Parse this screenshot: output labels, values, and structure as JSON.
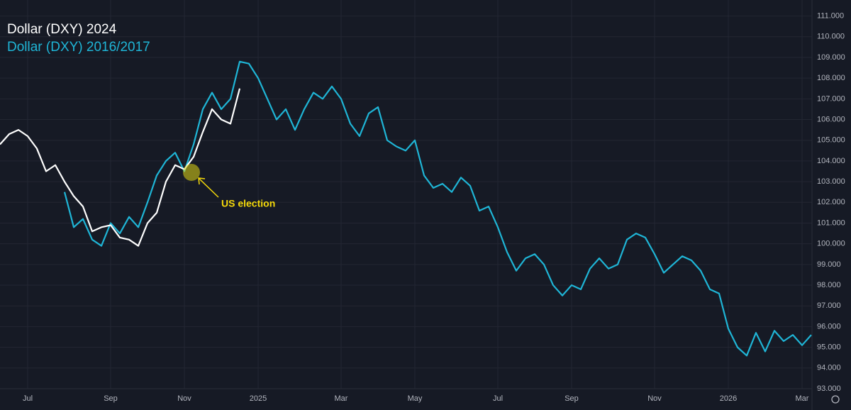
{
  "chart_data": {
    "type": "line",
    "series": [
      {
        "name": "Dollar (DXY) 2024",
        "color": "#ffffff",
        "values": [
          104.8,
          105.3,
          105.5,
          105.2,
          104.6,
          103.5,
          103.8,
          103.0,
          102.3,
          101.8,
          100.6,
          100.8,
          100.9,
          100.3,
          100.2,
          99.9,
          101.0,
          101.5,
          103.0,
          103.8,
          103.6,
          104.2,
          105.4,
          106.5,
          106.0,
          105.8,
          107.5,
          null,
          null,
          null,
          null,
          null,
          null,
          null,
          null,
          null,
          null,
          null,
          null,
          null,
          null,
          null,
          null,
          null,
          null,
          null,
          null,
          null,
          null,
          null,
          null,
          null,
          null,
          null,
          null,
          null,
          null,
          null,
          null,
          null,
          null,
          null,
          null,
          null,
          null,
          null,
          null,
          null,
          null,
          null,
          null,
          null,
          null,
          null,
          null,
          null,
          null,
          null,
          null,
          null,
          null,
          null,
          null,
          null,
          null,
          null,
          null,
          null,
          null
        ]
      },
      {
        "name": "Dollar (DXY) 2016/2017",
        "color": "#1fb5d6",
        "values": [
          null,
          null,
          null,
          null,
          null,
          null,
          null,
          102.5,
          100.8,
          101.2,
          100.2,
          99.9,
          101.0,
          100.5,
          101.3,
          100.8,
          102.0,
          103.3,
          104.0,
          104.4,
          103.5,
          104.8,
          106.5,
          107.3,
          106.5,
          107.0,
          108.8,
          108.7,
          108.0,
          107.0,
          106.0,
          106.5,
          105.5,
          106.5,
          107.3,
          107.0,
          107.6,
          107.0,
          105.8,
          105.2,
          106.3,
          106.6,
          105.0,
          104.7,
          104.5,
          105.0,
          103.3,
          102.7,
          102.9,
          102.5,
          103.2,
          102.8,
          101.6,
          101.8,
          100.8,
          99.6,
          98.7,
          99.3,
          99.5,
          99.0,
          98.0,
          97.5,
          98.0,
          97.8,
          98.8,
          99.3,
          98.8,
          99.0,
          100.2,
          100.5,
          100.3,
          99.5,
          98.6,
          99.0,
          99.4,
          99.2,
          98.7,
          97.8,
          97.6,
          95.9,
          95.0,
          94.6,
          95.7,
          94.8,
          95.8,
          95.3,
          95.6,
          95.1,
          95.6
        ]
      }
    ],
    "categories": [
      null,
      null,
      null,
      "Jul",
      null,
      null,
      null,
      null,
      null,
      null,
      null,
      null,
      "Sep",
      null,
      null,
      null,
      null,
      null,
      null,
      null,
      "Nov",
      null,
      null,
      null,
      null,
      null,
      null,
      null,
      "2025",
      null,
      null,
      null,
      null,
      null,
      null,
      null,
      null,
      "Mar",
      null,
      null,
      null,
      null,
      null,
      null,
      null,
      "May",
      null,
      null,
      null,
      null,
      null,
      null,
      null,
      null,
      "Jul",
      null,
      null,
      null,
      null,
      null,
      null,
      null,
      "Sep",
      null,
      null,
      null,
      null,
      null,
      null,
      null,
      null,
      "Nov",
      null,
      null,
      null,
      null,
      null,
      null,
      null,
      "2026",
      null,
      null,
      null,
      null,
      null,
      null,
      null,
      "Mar",
      null
    ],
    "ylim": [
      93,
      111.5
    ],
    "yticks": [
      {
        "value": 93,
        "label": "93.000"
      },
      {
        "value": 94,
        "label": "94.000"
      },
      {
        "value": 95,
        "label": "95.000"
      },
      {
        "value": 96,
        "label": "96.000"
      },
      {
        "value": 97,
        "label": "97.000"
      },
      {
        "value": 98,
        "label": "98.000"
      },
      {
        "value": 99,
        "label": "99.000"
      },
      {
        "value": 100,
        "label": "100.000"
      },
      {
        "value": 101,
        "label": "101.000"
      },
      {
        "value": 102,
        "label": "102.000"
      },
      {
        "value": 103,
        "label": "103.000"
      },
      {
        "value": 104,
        "label": "104.000"
      },
      {
        "value": 105,
        "label": "105.000"
      },
      {
        "value": 106,
        "label": "106.000"
      },
      {
        "value": 107,
        "label": "107.000"
      },
      {
        "value": 108,
        "label": "108.000"
      },
      {
        "value": 109,
        "label": "109.000"
      },
      {
        "value": 110,
        "label": "110.000"
      },
      {
        "value": 111,
        "label": "111.000"
      }
    ],
    "grid": true,
    "annotation": "US election"
  }
}
